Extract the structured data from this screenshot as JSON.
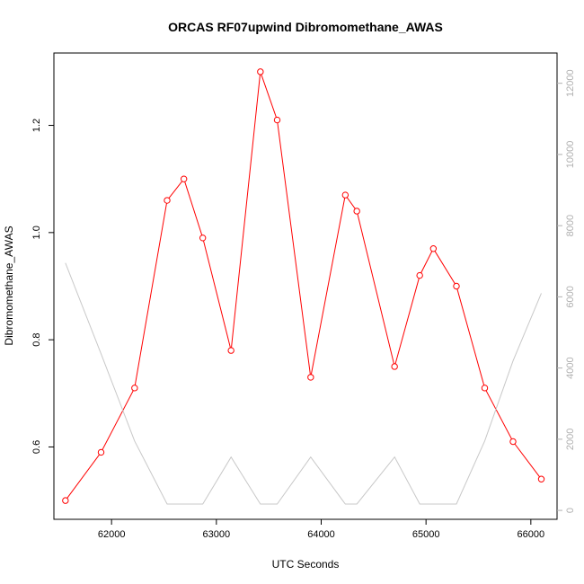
{
  "chart_data": {
    "type": "line",
    "title": "ORCAS RF07upwind Dibromomethane_AWAS",
    "xlabel": "UTC Seconds",
    "ylabel": "Dibromomethane_AWAS",
    "xlim": [
      61450,
      66250
    ],
    "ylim": [
      0.465,
      1.335
    ],
    "x_ticks": [
      62000,
      63000,
      64000,
      65000,
      66000
    ],
    "y_ticks": [
      0.6,
      0.8,
      1.0,
      1.2
    ],
    "y_tick_labels": [
      "0.6",
      "0.8",
      "1.0",
      "1.2"
    ],
    "y2lim": [
      -250,
      12850
    ],
    "y2_ticks": [
      0,
      2000,
      4000,
      6000,
      8000,
      10000,
      12000
    ],
    "series": [
      {
        "color": "#ff0000",
        "axis": "left",
        "markers": true,
        "x": [
          61560,
          61900,
          62220,
          62530,
          62690,
          62870,
          63140,
          63420,
          63580,
          63900,
          64230,
          64340,
          64700,
          64940,
          65070,
          65290,
          65560,
          65830,
          66100
        ],
        "y": [
          0.5,
          0.59,
          0.71,
          1.06,
          1.1,
          0.99,
          0.78,
          1.3,
          1.21,
          0.73,
          1.07,
          1.04,
          0.75,
          0.92,
          0.97,
          0.9,
          0.71,
          0.61,
          0.54
        ]
      },
      {
        "color": "#c8c8c8",
        "axis": "right",
        "markers": false,
        "x": [
          61560,
          61900,
          62220,
          62530,
          62690,
          62870,
          63140,
          63420,
          63580,
          63900,
          64230,
          64340,
          64700,
          64940,
          65070,
          65290,
          65560,
          65830,
          66100
        ],
        "y": [
          6950,
          4400,
          1950,
          180,
          180,
          180,
          1500,
          180,
          180,
          1500,
          180,
          180,
          1500,
          180,
          180,
          180,
          1950,
          4200,
          6100
        ]
      }
    ]
  }
}
